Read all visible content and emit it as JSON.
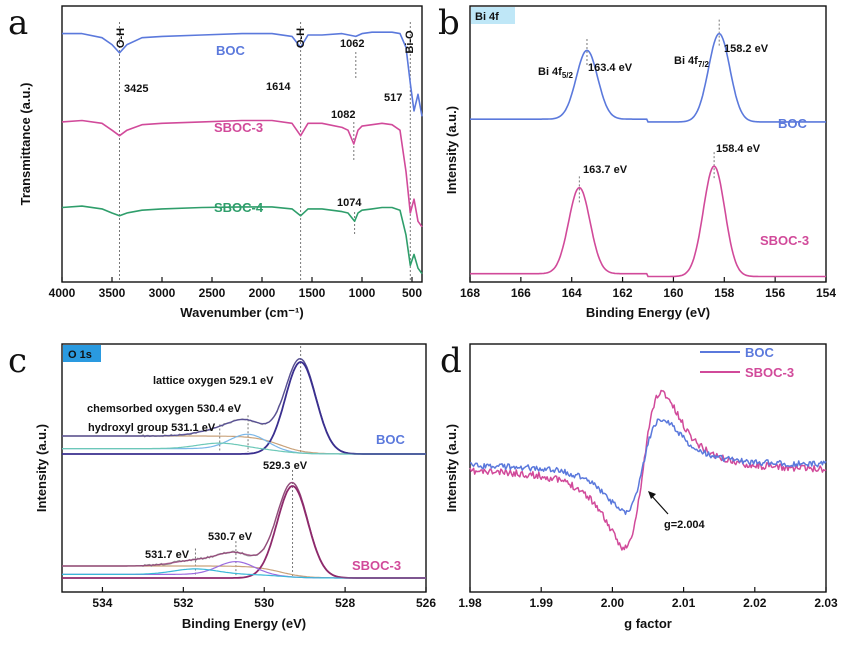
{
  "chart_data": [
    {
      "panel": "a",
      "type": "line",
      "xlabel": "Wavenumber (cm⁻¹)",
      "ylabel": "Transmittance (a.u.)",
      "xlim": [
        4000,
        400
      ],
      "xticks": [
        4000,
        3500,
        3000,
        2500,
        2000,
        1500,
        1000,
        500
      ],
      "series": [
        {
          "name": "BOC",
          "color": "#5b79dc",
          "label_color": "#5b79dc",
          "x": [
            4000,
            3800,
            3600,
            3500,
            3425,
            3350,
            3200,
            3000,
            2600,
            2200,
            1900,
            1700,
            1614,
            1540,
            1400,
            1200,
            1062,
            1000,
            900,
            800,
            700,
            620,
            560,
            517,
            480,
            440,
            400
          ],
          "y": [
            0.9,
            0.9,
            0.885,
            0.86,
            0.83,
            0.86,
            0.885,
            0.89,
            0.895,
            0.9,
            0.9,
            0.89,
            0.85,
            0.895,
            0.895,
            0.9,
            0.89,
            0.9,
            0.905,
            0.905,
            0.905,
            0.9,
            0.85,
            0.72,
            0.62,
            0.68,
            0.6
          ]
        },
        {
          "name": "SBOC-3",
          "color": "#d14a9a",
          "label_color": "#d14a9a",
          "x": [
            4000,
            3800,
            3600,
            3500,
            3425,
            3350,
            3200,
            3000,
            2600,
            2200,
            1900,
            1700,
            1614,
            1540,
            1400,
            1200,
            1140,
            1082,
            1040,
            1000,
            900,
            800,
            700,
            620,
            560,
            517,
            480,
            440,
            400
          ],
          "y": [
            0.58,
            0.585,
            0.575,
            0.55,
            0.53,
            0.55,
            0.57,
            0.575,
            0.58,
            0.585,
            0.585,
            0.575,
            0.53,
            0.575,
            0.575,
            0.56,
            0.55,
            0.5,
            0.55,
            0.565,
            0.57,
            0.575,
            0.57,
            0.55,
            0.4,
            0.25,
            0.3,
            0.22,
            0.2
          ]
        },
        {
          "name": "SBOC-4",
          "color": "#2f9e6b",
          "label_color": "#2f9e6b",
          "x": [
            4000,
            3800,
            3600,
            3500,
            3425,
            3350,
            3200,
            3000,
            2600,
            2200,
            1900,
            1700,
            1614,
            1540,
            1400,
            1200,
            1140,
            1074,
            1040,
            1000,
            900,
            800,
            700,
            620,
            560,
            517,
            480,
            440,
            400
          ],
          "y": [
            0.27,
            0.275,
            0.265,
            0.25,
            0.24,
            0.25,
            0.26,
            0.265,
            0.27,
            0.272,
            0.272,
            0.265,
            0.24,
            0.265,
            0.265,
            0.255,
            0.25,
            0.22,
            0.25,
            0.26,
            0.265,
            0.27,
            0.27,
            0.26,
            0.17,
            0.06,
            0.1,
            0.05,
            0.03
          ]
        }
      ],
      "band_labels": [
        "O-H",
        "O-H",
        "Bi-O"
      ],
      "peak_labels": [
        "3425",
        "1614",
        "1062",
        "517",
        "1082",
        "1074"
      ]
    },
    {
      "panel": "b",
      "badge": "Bi 4f",
      "type": "line",
      "xlabel": "Binding Energy (eV)",
      "ylabel": "Intensity (a.u.)",
      "xlim": [
        168,
        154
      ],
      "xticks": [
        168,
        166,
        164,
        162,
        160,
        158,
        156,
        154
      ],
      "series": [
        {
          "name": "BOC",
          "color": "#5b79dc",
          "peaks": [
            163.4,
            158.2
          ],
          "baseline": 0.58,
          "height": 0.32
        },
        {
          "name": "SBOC-3",
          "color": "#d14a9a",
          "peaks": [
            163.7,
            158.4
          ],
          "baseline": 0.02,
          "height": 0.4
        }
      ],
      "annotations": {
        "bi4f52_label": "Bi 4f",
        "bi4f52_sub": "5/2",
        "bi4f72_label": "Bi 4f",
        "bi4f72_sub": "7/2",
        "boc_peak1": "163.4 eV",
        "boc_peak2": "158.2 eV",
        "sboc_peak1": "163.7 eV",
        "sboc_peak2": "158.4 eV"
      }
    },
    {
      "panel": "c",
      "badge": "O 1s",
      "type": "line",
      "xlabel": "Binding Energy (eV)",
      "ylabel": "Intensity (a.u.)",
      "xlim": [
        535,
        526
      ],
      "xticks": [
        534,
        532,
        530,
        528,
        526
      ],
      "series": [
        {
          "name": "BOC",
          "color": "#5b79dc",
          "components": [
            529.1,
            530.4,
            531.1
          ]
        },
        {
          "name": "SBOC-3",
          "color": "#d14a9a",
          "components": [
            529.3,
            530.7,
            531.7
          ]
        }
      ],
      "annotations": {
        "lattice": "lattice oxygen 529.1 eV",
        "chemsorbed": "chemsorbed oxygen 530.4 eV",
        "hydroxyl": "hydroxyl group 531.1 eV",
        "sboc_529": "529.3 eV",
        "sboc_530": "530.7 eV",
        "sboc_531": "531.7 eV"
      }
    },
    {
      "panel": "d",
      "type": "line",
      "xlabel": "g factor",
      "ylabel": "Intensity (a.u.)",
      "xlim": [
        1.98,
        2.03
      ],
      "xticks": [
        "1.98",
        "1.99",
        "2.00",
        "2.01",
        "2.02",
        "2.03"
      ],
      "legend": "top",
      "series": [
        {
          "name": "BOC",
          "color": "#5b79dc"
        },
        {
          "name": "SBOC-3",
          "color": "#d14a9a"
        }
      ],
      "annotation": "g=2.004"
    }
  ]
}
